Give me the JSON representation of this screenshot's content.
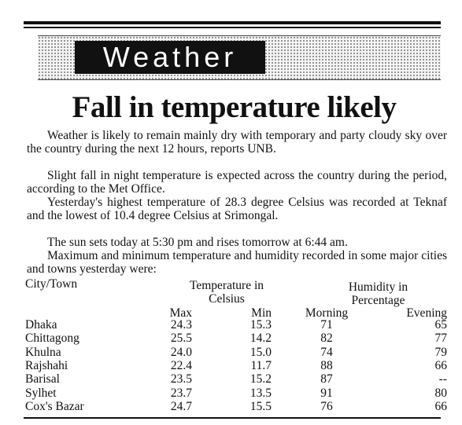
{
  "section_label": "Weather",
  "headline": "Fall in temperature likely",
  "paragraphs": [
    "Weather is likely to remain mainly dry with temporary and party cloudy sky over the country during the next 12 hours, reports UNB.",
    "Slight fall in night temperature is expected across the country during the period, according to the Met Office.",
    "Yesterday's highest temperature of 28.3 degree Celsius was recorded at Teknaf and the lowest of 10.4 degree Celsius at Srimongal.",
    "The sun sets today at 5:30 pm and rises tomorrow at 6:44 am.",
    "Maximum and minimum temperature and humidity recorded in some major cities and towns yesterday were:"
  ],
  "table": {
    "header": {
      "city": "City/Town",
      "temperature": "Temperature in Celsius",
      "humidity": "Humidity in Percentage",
      "max": "Max",
      "min": "Min",
      "morning": "Morning",
      "evening": "Evening"
    },
    "rows": [
      [
        "Dhaka",
        "24.3",
        "15.3",
        "71",
        "65"
      ],
      [
        "Chittagong",
        "25.5",
        "14.2",
        "82",
        "77"
      ],
      [
        "Khulna",
        "24.0",
        "15.0",
        "74",
        "79"
      ],
      [
        "Rajshahi",
        "22.4",
        "11.7",
        "88",
        "66"
      ],
      [
        "Barisal",
        "23.5",
        "15.2",
        "87",
        "--"
      ],
      [
        "Sylhet",
        "23.7",
        "13.5",
        "91",
        "80"
      ],
      [
        "Cox's Bazar",
        "24.7",
        "15.5",
        "76",
        "66"
      ]
    ]
  }
}
